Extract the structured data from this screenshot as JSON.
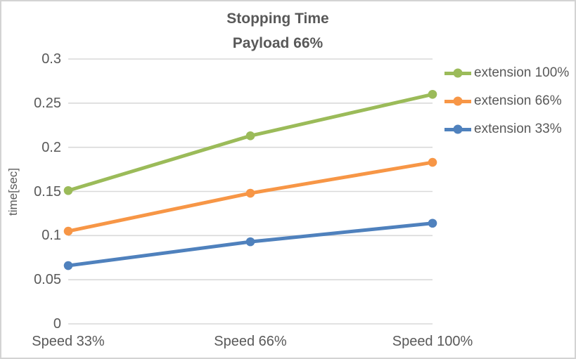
{
  "chart": {
    "title_line1": "Stopping Time",
    "title_line2": "Payload 66%",
    "y_axis_label": "time[sec]"
  },
  "chart_data": {
    "type": "line",
    "title": "Stopping Time Payload 66%",
    "categories": [
      "Speed 33%",
      "Speed 66%",
      "Speed 100%"
    ],
    "series": [
      {
        "name": "extension 100%",
        "color": "#9BBB59",
        "values": [
          0.151,
          0.213,
          0.26
        ]
      },
      {
        "name": "extension 66%",
        "color": "#F79646",
        "values": [
          0.105,
          0.148,
          0.183
        ]
      },
      {
        "name": "extension 33%",
        "color": "#4F81BD",
        "values": [
          0.066,
          0.093,
          0.114
        ]
      }
    ],
    "xlabel": "",
    "ylabel": "time[sec]",
    "ylim": [
      0,
      0.3
    ],
    "ytick_values": [
      0,
      0.05,
      0.1,
      0.15,
      0.2,
      0.25,
      0.3
    ],
    "ytick_labels": [
      "0",
      "0.05",
      "0.1",
      "0.15",
      "0.2",
      "0.25",
      "0.3"
    ],
    "grid": true,
    "legend_position": "right",
    "marker": "circle"
  },
  "colors": {
    "text": "#595959",
    "gridline": "#D9D9D9",
    "border": "#D3D3D3",
    "background": "#FFFFFF"
  }
}
